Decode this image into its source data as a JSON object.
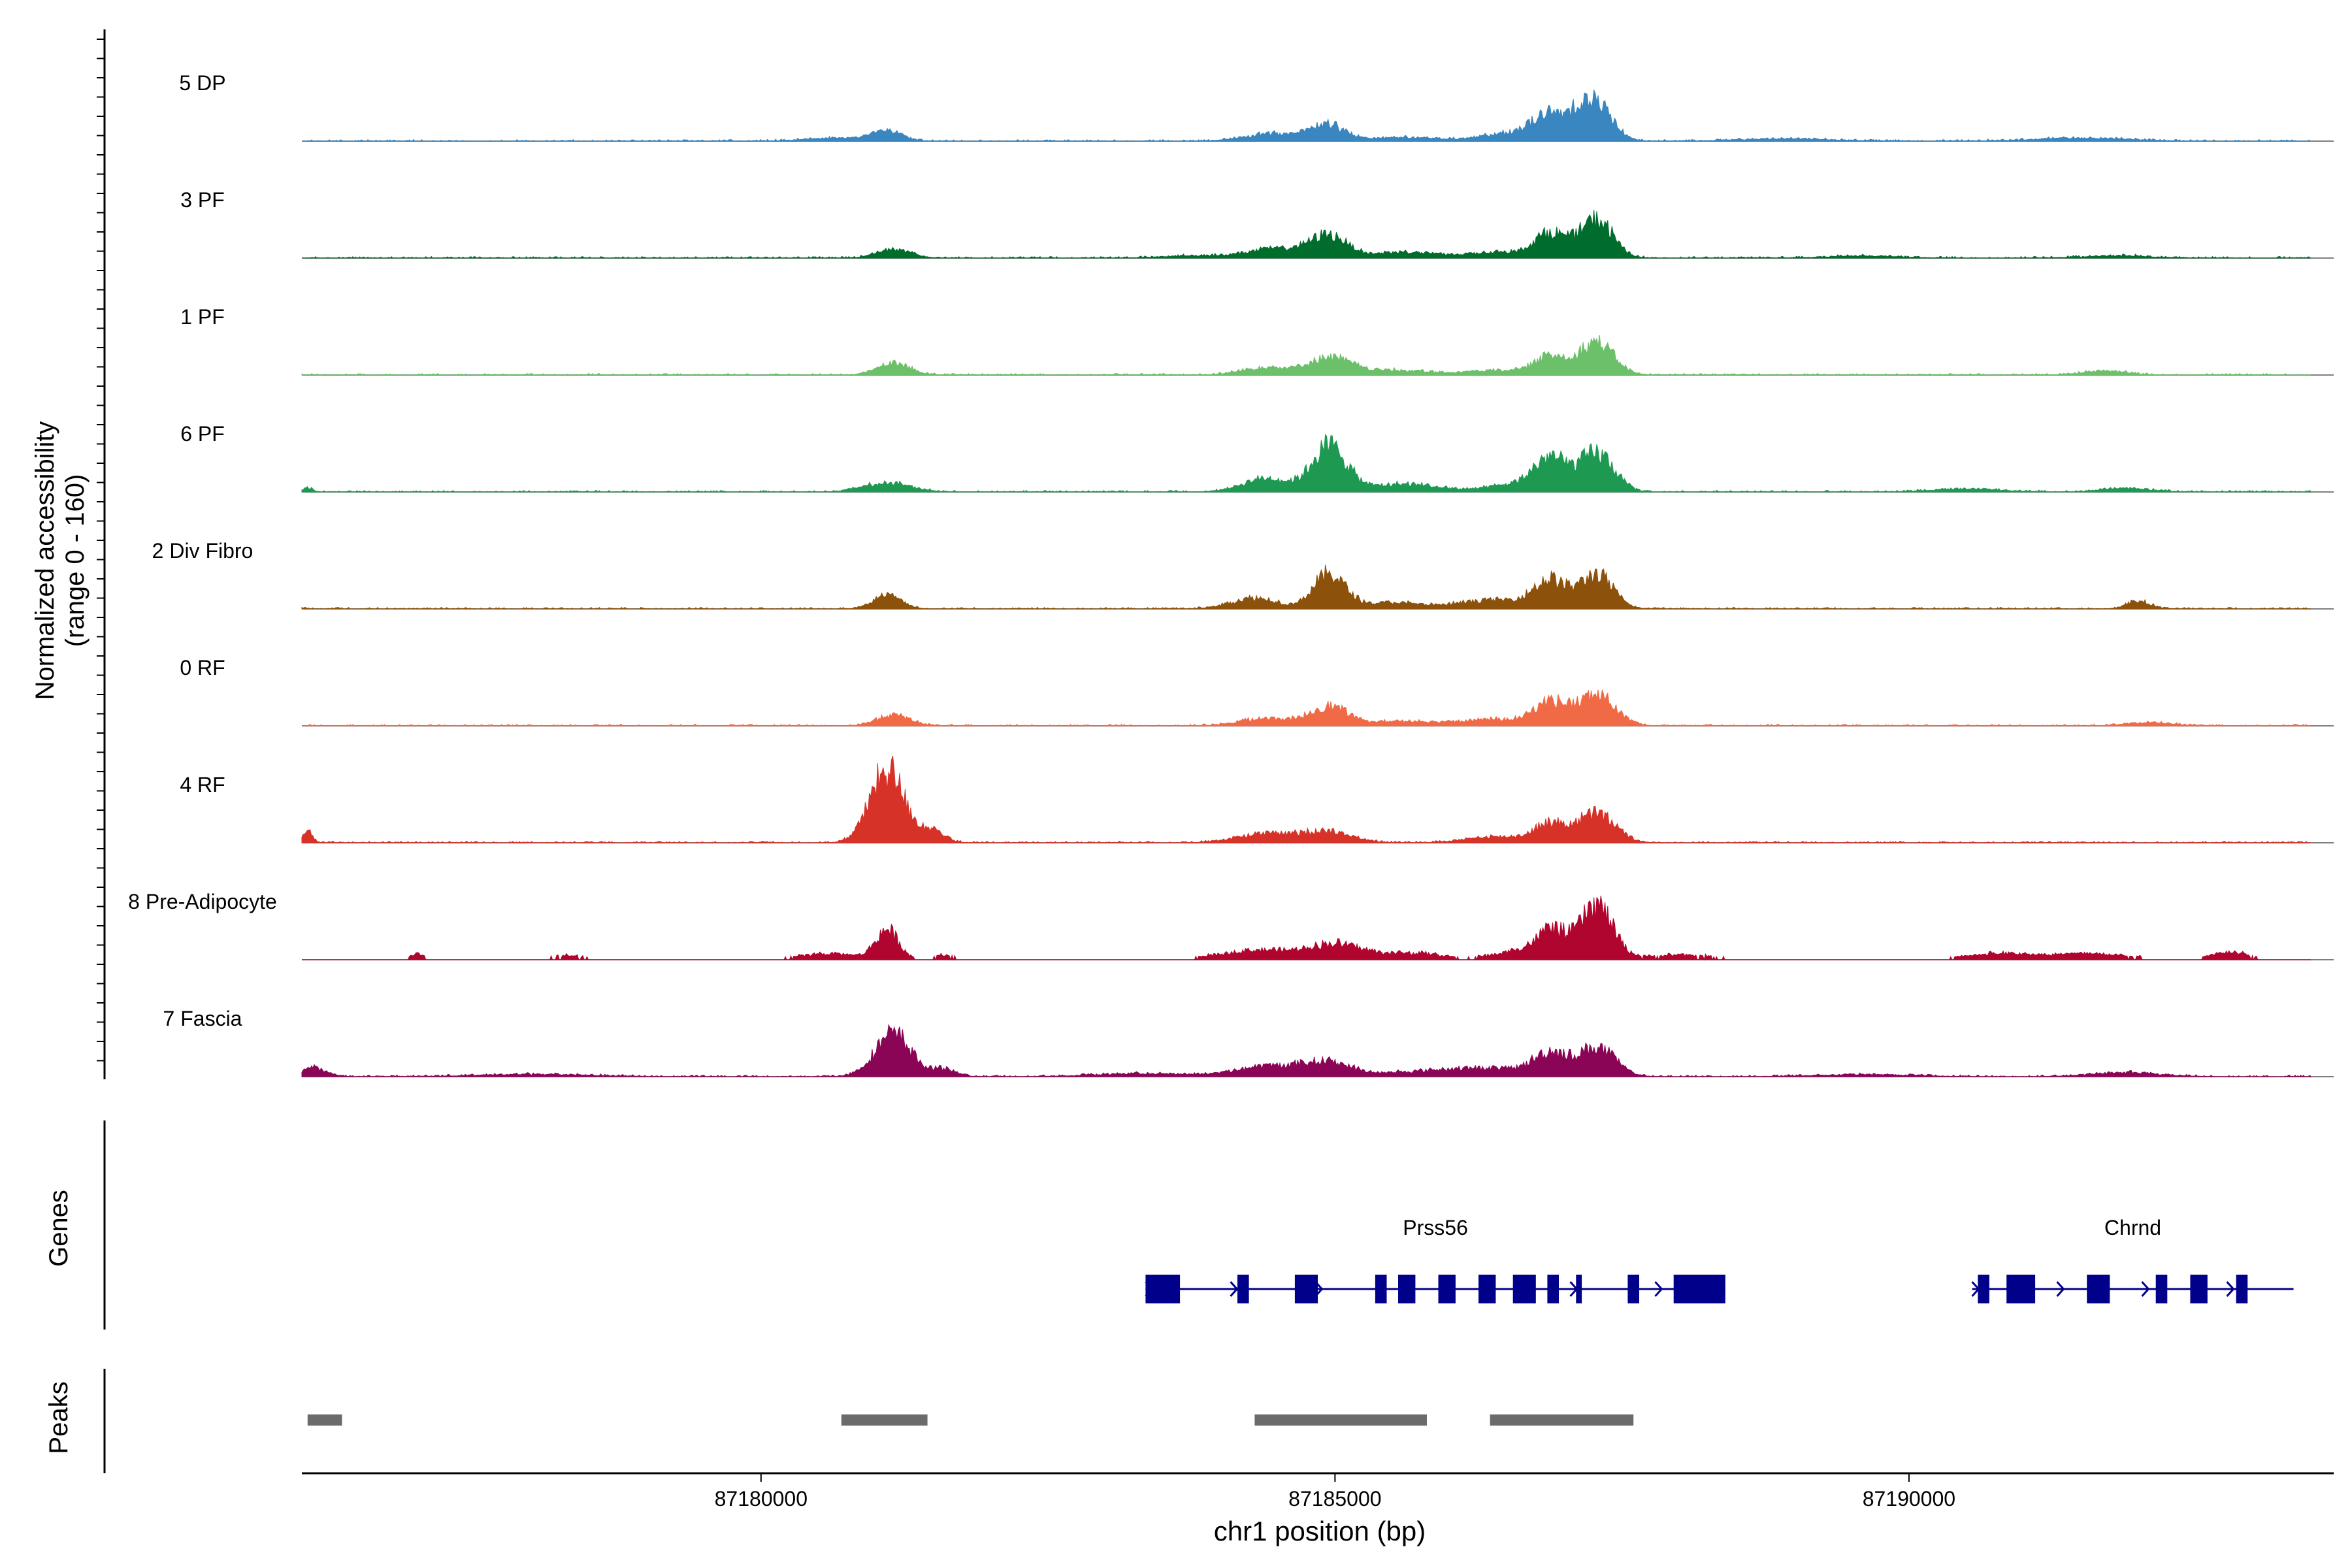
{
  "chart_data": {
    "type": "area",
    "title": "",
    "xlabel": "chr1 position (bp)",
    "ylabel_line1": "Normalized accessibility",
    "ylabel_line2": "(range 0 - 160)",
    "xlim": [
      87176000,
      87193700
    ],
    "ylim": [
      0,
      160
    ],
    "x_ticks": [
      87180000,
      87185000,
      87190000
    ],
    "x_tick_labels": [
      "87180000",
      "87185000",
      "87190000"
    ],
    "track_start": 87176000,
    "track_end": 87193500,
    "series": [
      {
        "name": "5 DP",
        "color": "#3a86c0",
        "peaks": [
          [
            87180700,
            4,
            300
          ],
          [
            87181100,
            12,
            120
          ],
          [
            87184500,
            10,
            250
          ],
          [
            87184950,
            20,
            140
          ],
          [
            87185600,
            5,
            300
          ],
          [
            87186500,
            10,
            220
          ],
          [
            87186850,
            32,
            140
          ],
          [
            87187100,
            22,
            100
          ],
          [
            87187280,
            48,
            140
          ],
          [
            87188900,
            3,
            400
          ],
          [
            87191500,
            4,
            400
          ]
        ]
      },
      {
        "name": "3 PF",
        "color": "#006d2c",
        "peaks": [
          [
            87183800,
            3,
            300
          ],
          [
            87184500,
            12,
            250
          ],
          [
            87184950,
            28,
            160
          ],
          [
            87185600,
            8,
            250
          ],
          [
            87186400,
            8,
            250
          ],
          [
            87186880,
            32,
            140
          ],
          [
            87187280,
            50,
            140
          ],
          [
            87181150,
            12,
            140
          ],
          [
            87189600,
            3,
            300
          ],
          [
            87191800,
            3,
            300
          ]
        ]
      },
      {
        "name": "1 PF",
        "color": "#6cc069",
        "peaks": [
          [
            87181150,
            16,
            140
          ],
          [
            87184400,
            10,
            200
          ],
          [
            87184950,
            22,
            180
          ],
          [
            87185500,
            6,
            300
          ],
          [
            87186400,
            6,
            250
          ],
          [
            87186880,
            24,
            140
          ],
          [
            87187280,
            42,
            150
          ],
          [
            87191700,
            5,
            200
          ]
        ]
      },
      {
        "name": "6 PF",
        "color": "#1e9952",
        "peaks": [
          [
            87176050,
            6,
            40
          ],
          [
            87181100,
            12,
            200
          ],
          [
            87184400,
            18,
            200
          ],
          [
            87184950,
            60,
            150
          ],
          [
            87185600,
            10,
            300
          ],
          [
            87186600,
            10,
            250
          ],
          [
            87186880,
            40,
            140
          ],
          [
            87187280,
            50,
            150
          ],
          [
            87190500,
            4,
            300
          ],
          [
            87191900,
            5,
            200
          ]
        ]
      },
      {
        "name": "2 Div Fibro",
        "color": "#8c510a",
        "peaks": [
          [
            87181100,
            18,
            120
          ],
          [
            87184300,
            14,
            200
          ],
          [
            87184950,
            45,
            140
          ],
          [
            87185500,
            8,
            250
          ],
          [
            87186400,
            12,
            300
          ],
          [
            87186880,
            35,
            140
          ],
          [
            87187280,
            45,
            140
          ],
          [
            87192000,
            10,
            100
          ]
        ]
      },
      {
        "name": "0 RF",
        "color": "#f16a46",
        "peaks": [
          [
            87181150,
            14,
            140
          ],
          [
            87184400,
            10,
            220
          ],
          [
            87184950,
            25,
            160
          ],
          [
            87185600,
            6,
            300
          ],
          [
            87186400,
            8,
            300
          ],
          [
            87186880,
            30,
            140
          ],
          [
            87187280,
            40,
            160
          ],
          [
            87192100,
            4,
            200
          ]
        ]
      },
      {
        "name": "4 RF",
        "color": "#d63228",
        "peaks": [
          [
            87176050,
            14,
            40
          ],
          [
            87181100,
            95,
            150
          ],
          [
            87181500,
            16,
            100
          ],
          [
            87184400,
            12,
            250
          ],
          [
            87184950,
            15,
            200
          ],
          [
            87186400,
            8,
            250
          ],
          [
            87186880,
            24,
            140
          ],
          [
            87187280,
            38,
            160
          ]
        ]
      },
      {
        "name": "8 Pre-Adipocyte",
        "color": "#b0052e",
        "peaks": [
          [
            87177000,
            8,
            60
          ],
          [
            87178300,
            5,
            150
          ],
          [
            87180600,
            8,
            250
          ],
          [
            87181100,
            38,
            100
          ],
          [
            87181600,
            6,
            80
          ],
          [
            87184300,
            12,
            300
          ],
          [
            87185000,
            20,
            250
          ],
          [
            87185700,
            8,
            250
          ],
          [
            87186700,
            14,
            250
          ],
          [
            87186900,
            30,
            120
          ],
          [
            87187280,
            70,
            140
          ],
          [
            87188000,
            6,
            300
          ],
          [
            87190800,
            8,
            300
          ],
          [
            87191600,
            8,
            300
          ],
          [
            87192800,
            10,
            150
          ]
        ]
      },
      {
        "name": "7 Fascia",
        "color": "#8b0557",
        "peaks": [
          [
            87176100,
            12,
            100
          ],
          [
            87178000,
            3,
            500
          ],
          [
            87181150,
            55,
            160
          ],
          [
            87181600,
            10,
            100
          ],
          [
            87183300,
            4,
            400
          ],
          [
            87184450,
            14,
            300
          ],
          [
            87184950,
            16,
            200
          ],
          [
            87185900,
            8,
            400
          ],
          [
            87186500,
            8,
            300
          ],
          [
            87186880,
            28,
            140
          ],
          [
            87187280,
            38,
            160
          ],
          [
            87189600,
            3,
            400
          ],
          [
            87191900,
            5,
            300
          ]
        ]
      }
    ],
    "genes_label": "Genes",
    "genes": [
      {
        "name": "Prss56",
        "start": 87183350,
        "end": 87188400,
        "strand": "+",
        "exons": [
          [
            87183350,
            87183650
          ],
          [
            87184150,
            87184250
          ],
          [
            87184650,
            87184850
          ],
          [
            87185350,
            87185450
          ],
          [
            87185550,
            87185700
          ],
          [
            87185900,
            87186050
          ],
          [
            87186250,
            87186400
          ],
          [
            87186550,
            87186750
          ],
          [
            87186850,
            87186950
          ],
          [
            87187100,
            87187150
          ],
          [
            87187550,
            87187650
          ],
          [
            87187950,
            87188400
          ]
        ]
      },
      {
        "name": "Chrnd",
        "start": 87190550,
        "end": 87193350,
        "strand": "+",
        "exons": [
          [
            87190600,
            87190700
          ],
          [
            87190850,
            87191100
          ],
          [
            87191550,
            87191750
          ],
          [
            87192150,
            87192250
          ],
          [
            87192450,
            87192600
          ],
          [
            87192850,
            87192950
          ]
        ]
      }
    ],
    "peaks_label": "Peaks",
    "peak_regions": [
      [
        87176050,
        87176350
      ],
      [
        87180700,
        87181450
      ],
      [
        87184300,
        87185800
      ],
      [
        87186350,
        87187600
      ]
    ]
  }
}
